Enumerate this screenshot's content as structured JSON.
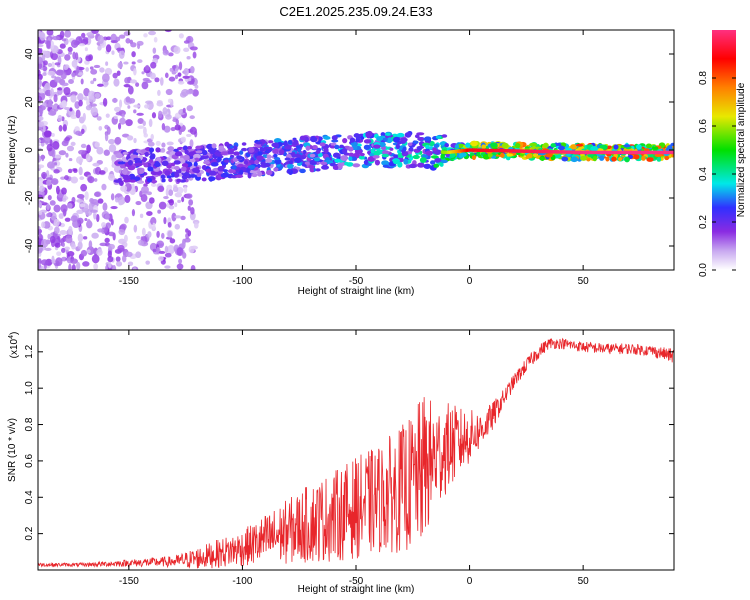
{
  "title": "C2E1.2025.235.09.24.E33",
  "chart_data": [
    {
      "type": "heatmap",
      "xlabel": "Height of straight line (km)",
      "ylabel": "Frequency (Hz)",
      "xlim": [
        -190,
        90
      ],
      "ylim": [
        -50,
        50
      ],
      "x_ticks": [
        -150,
        -100,
        -50,
        0,
        50
      ],
      "y_ticks": [
        -40,
        -20,
        0,
        20,
        40
      ],
      "colorbar": {
        "label": "Normalized spectral amplitude",
        "range": [
          0,
          1
        ],
        "ticks": [
          0.0,
          0.2,
          0.4,
          0.6,
          0.8
        ],
        "stops": [
          "#ffffff",
          "#c8a8f0",
          "#8a2be2",
          "#3030ff",
          "#00e8e8",
          "#00e000",
          "#e8e800",
          "#ff8000",
          "#ff0000",
          "#ff3080"
        ]
      },
      "ridge": [
        {
          "x": -150,
          "y": -7,
          "amp": 0.3
        },
        {
          "x": -125,
          "y": -6,
          "amp": 0.3
        },
        {
          "x": -100,
          "y": -4,
          "amp": 0.35
        },
        {
          "x": -75,
          "y": -2,
          "amp": 0.4
        },
        {
          "x": -50,
          "y": 0,
          "amp": 0.45
        },
        {
          "x": -25,
          "y": 0,
          "amp": 0.5
        },
        {
          "x": -10,
          "y": -1,
          "amp": 0.6
        },
        {
          "x": 0,
          "y": 0,
          "amp": 0.9
        },
        {
          "x": 50,
          "y": -1,
          "amp": 1.0
        },
        {
          "x": 90,
          "y": -1,
          "amp": 1.0
        }
      ]
    },
    {
      "type": "line",
      "xlabel": "Height of straight line (km)",
      "ylabel": "SNR (10 * v/v)",
      "y_multiplier": "(x10",
      "y_multiplier_exp": "4",
      "y_multiplier_close": ")",
      "xlim": [
        -190,
        90
      ],
      "ylim": [
        0,
        1.32
      ],
      "x_ticks": [
        -150,
        -100,
        -50,
        0,
        50
      ],
      "y_ticks": [
        0.2,
        0.4,
        0.6,
        0.8,
        1.0,
        1.2
      ],
      "color": "#e8262b",
      "series": [
        {
          "x": [
            -190,
            -170,
            -150,
            -130,
            -120,
            -110,
            -100,
            -90,
            -80,
            -70,
            -60,
            -50,
            -40,
            -30,
            -25,
            -20,
            -15,
            -10,
            -5,
            0,
            5,
            10,
            15,
            20,
            25,
            30,
            35,
            40,
            45,
            50,
            60,
            70,
            80,
            90
          ],
          "y": [
            0.03,
            0.03,
            0.04,
            0.05,
            0.07,
            0.1,
            0.13,
            0.18,
            0.23,
            0.28,
            0.32,
            0.37,
            0.42,
            0.48,
            0.52,
            0.6,
            0.65,
            0.7,
            0.72,
            0.75,
            0.78,
            0.85,
            0.95,
            1.05,
            1.13,
            1.2,
            1.25,
            1.25,
            1.24,
            1.23,
            1.22,
            1.22,
            1.21,
            1.18
          ],
          "noise": [
            0.01,
            0.01,
            0.02,
            0.03,
            0.06,
            0.08,
            0.1,
            0.14,
            0.18,
            0.22,
            0.25,
            0.28,
            0.3,
            0.35,
            0.38,
            0.42,
            0.3,
            0.25,
            0.2,
            0.15,
            0.1,
            0.08,
            0.05,
            0.04,
            0.04,
            0.04,
            0.03,
            0.03,
            0.03,
            0.03,
            0.03,
            0.03,
            0.03,
            0.04
          ]
        }
      ]
    }
  ]
}
